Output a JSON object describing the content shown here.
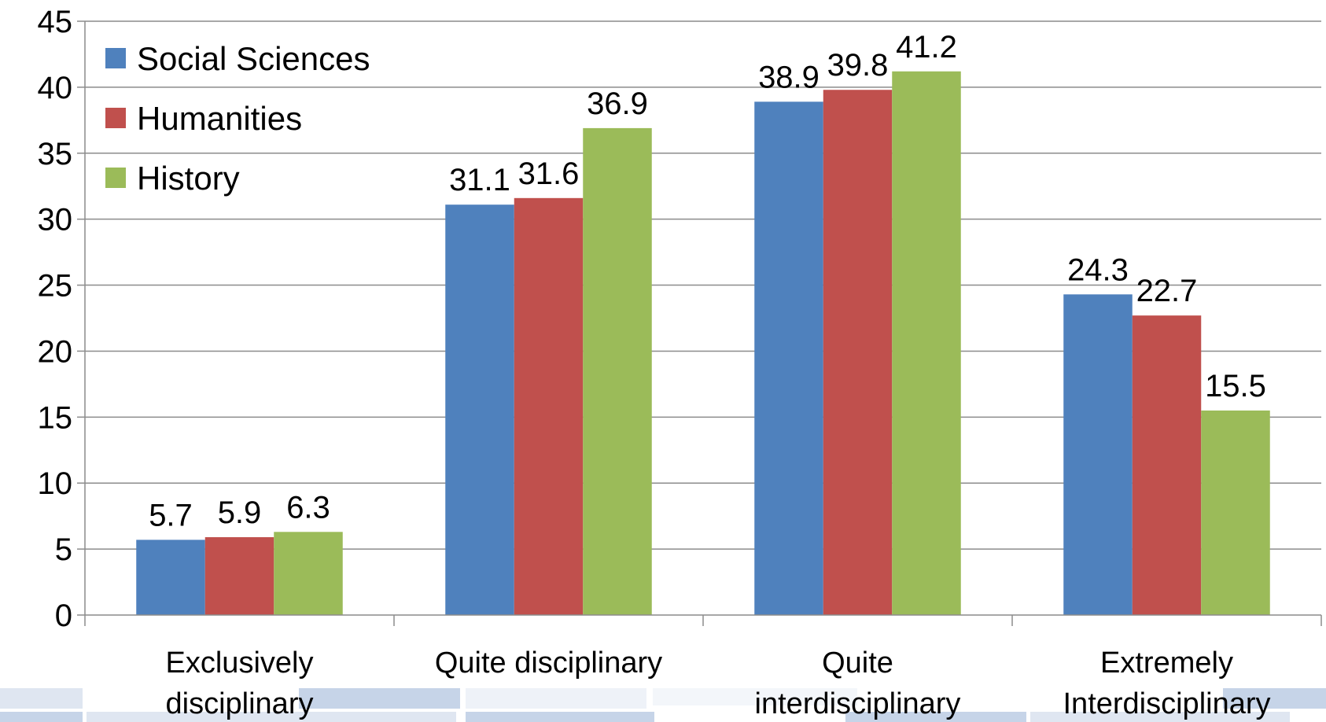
{
  "chart_data": {
    "type": "bar",
    "categories": [
      [
        "Exclusively",
        "disciplinary"
      ],
      [
        "Quite disciplinary"
      ],
      [
        "Quite",
        "interdisciplinary"
      ],
      [
        "Extremely",
        "Interdisciplinary"
      ]
    ],
    "series": [
      {
        "name": "Social Sciences",
        "color": "#4F81BD",
        "values": [
          5.7,
          31.1,
          38.9,
          24.3
        ]
      },
      {
        "name": "Humanities",
        "color": "#C0504D",
        "values": [
          5.9,
          31.6,
          39.8,
          22.7
        ]
      },
      {
        "name": "History",
        "color": "#9BBB59",
        "values": [
          6.3,
          36.9,
          41.2,
          15.5
        ]
      }
    ],
    "data_labels": [
      [
        "5.7",
        "31.1",
        "38.9",
        "24.3"
      ],
      [
        "5.9",
        "31.6",
        "39.8",
        "22.7"
      ],
      [
        "6.3",
        "36.9",
        "41.2",
        "15.5"
      ]
    ],
    "y_ticks": [
      "0",
      "5",
      "10",
      "15",
      "20",
      "25",
      "30",
      "35",
      "40",
      "45"
    ],
    "ylim": [
      0,
      45
    ],
    "grid": true,
    "legend_position": "top-left"
  }
}
